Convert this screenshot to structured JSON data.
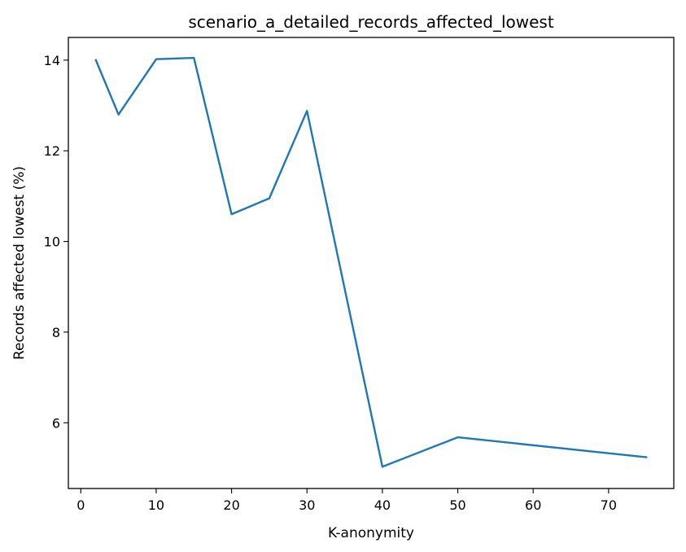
{
  "chart_data": {
    "type": "line",
    "title": "scenario_a_detailed_records_affected_lowest",
    "xlabel": "K-anonymity",
    "ylabel": "Records affected lowest (%)",
    "xlim": [
      -1.65,
      78.65
    ],
    "ylim": [
      4.55,
      14.5
    ],
    "xticks": [
      0,
      10,
      20,
      30,
      40,
      50,
      60,
      70
    ],
    "yticks": [
      6,
      8,
      10,
      12,
      14
    ],
    "grid": false,
    "series": [
      {
        "color": "#1f77b4",
        "x": [
          2,
          5,
          10,
          15,
          20,
          25,
          30,
          40,
          50,
          75
        ],
        "y": [
          14.0,
          12.8,
          14.02,
          14.05,
          10.6,
          10.95,
          12.88,
          5.03,
          5.68,
          5.24
        ]
      }
    ]
  }
}
